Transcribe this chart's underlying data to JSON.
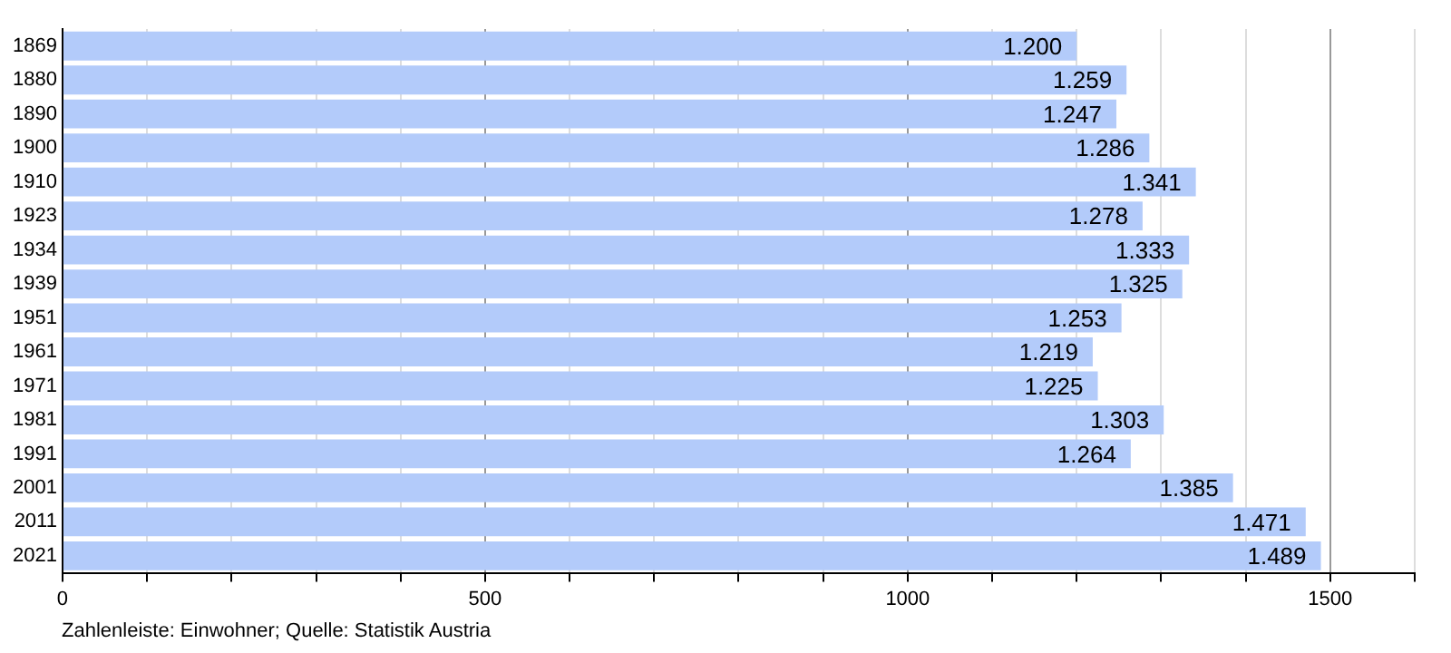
{
  "chart_data": {
    "type": "bar",
    "orientation": "horizontal",
    "categories": [
      "1869",
      "1880",
      "1890",
      "1900",
      "1910",
      "1923",
      "1934",
      "1939",
      "1951",
      "1961",
      "1971",
      "1981",
      "1991",
      "2001",
      "2011",
      "2021"
    ],
    "values": [
      1200,
      1259,
      1247,
      1286,
      1341,
      1278,
      1333,
      1325,
      1253,
      1219,
      1225,
      1303,
      1264,
      1385,
      1471,
      1489
    ],
    "value_labels": [
      "1.200",
      "1.259",
      "1.247",
      "1.286",
      "1.341",
      "1.278",
      "1.333",
      "1.325",
      "1.253",
      "1.219",
      "1.225",
      "1.303",
      "1.264",
      "1.385",
      "1.471",
      "1.489"
    ],
    "color": "#b3cbfa",
    "xlim": [
      0,
      1600
    ],
    "xticks": [
      0,
      {
        "value": 100,
        "label": null
      },
      {
        "value": 200,
        "label": null
      },
      {
        "value": 300,
        "label": null
      },
      {
        "value": 400,
        "label": null
      },
      500,
      {
        "value": 600,
        "label": null
      },
      {
        "value": 700,
        "label": null
      },
      {
        "value": 800,
        "label": null
      },
      {
        "value": 900,
        "label": null
      },
      1000,
      {
        "value": 1100,
        "label": null
      },
      {
        "value": 1200,
        "label": null
      },
      {
        "value": 1300,
        "label": null
      },
      {
        "value": 1400,
        "label": null
      },
      1500,
      {
        "value": 1600,
        "label": null
      }
    ],
    "grid": "x",
    "legend": false,
    "annotations": [
      "Zahlenleiste: Einwohner; Quelle: Statistik Austria"
    ]
  }
}
